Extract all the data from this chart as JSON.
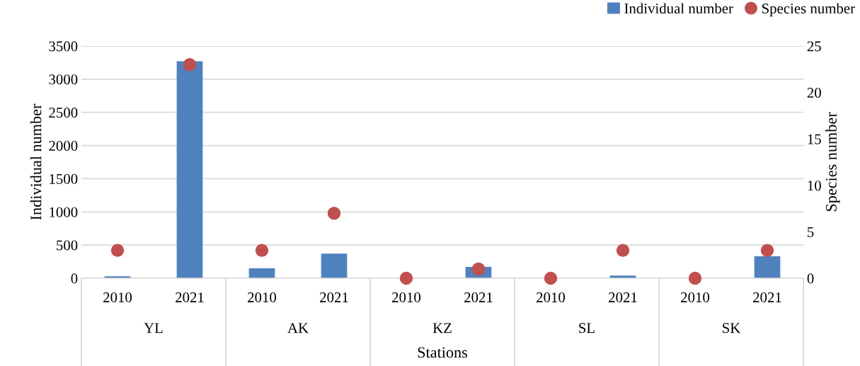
{
  "chart_data": {
    "type": "bar",
    "xlabel": "Stations",
    "ylabel": "Individual number",
    "y2label": "Species number",
    "categories": [
      "2010",
      "2021",
      "2010",
      "2021",
      "2010",
      "2021",
      "2010",
      "2021",
      "2010",
      "2021"
    ],
    "series": [
      {
        "name": "Individual number",
        "color": "#4f81bd",
        "values": [
          30,
          3270,
          150,
          370,
          0,
          170,
          0,
          40,
          0,
          330
        ]
      },
      {
        "name": "Species number",
        "type": "scatter",
        "axis": "y2",
        "color": "#c0504d",
        "marker": "circle",
        "values": [
          3,
          23,
          3,
          7,
          0,
          1,
          0,
          3,
          0,
          3
        ]
      }
    ],
    "annotations": [
      "YL",
      "AK",
      "KZ",
      "SL",
      "SK"
    ],
    "ylim": [
      0,
      3500
    ],
    "yticks": [
      0,
      500,
      1000,
      1500,
      2000,
      2500,
      3000,
      3500
    ],
    "y2lim": [
      0,
      25
    ],
    "y2ticks": [
      0,
      5,
      10,
      15,
      20,
      25
    ],
    "grid": "y",
    "legend": "top right"
  }
}
